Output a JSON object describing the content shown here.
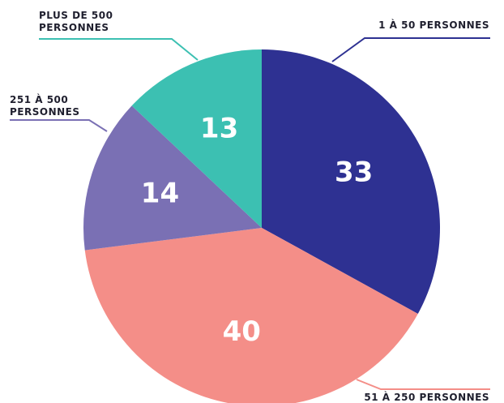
{
  "chart_data": {
    "type": "pie",
    "categories": [
      "1 À 50 PERSONNES",
      "51 À 250 PERSONNES",
      "251 À 500 PERSONNES",
      "PLUS DE 500 PERSONNES"
    ],
    "values": [
      33,
      40,
      14,
      13
    ],
    "colors": [
      "#2e3192",
      "#f48e88",
      "#7a70b4",
      "#3cc0b2"
    ]
  }
}
